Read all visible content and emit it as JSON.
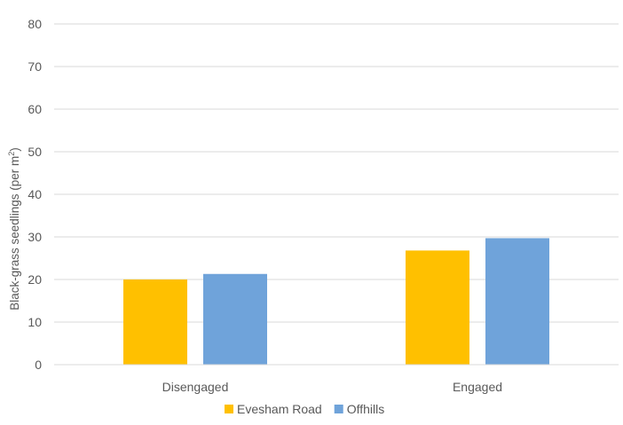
{
  "chart_data": {
    "type": "bar",
    "categories": [
      "Disengaged",
      "Engaged"
    ],
    "series": [
      {
        "name": "Evesham Road",
        "values": [
          20,
          26.8
        ],
        "color": "#FFC000"
      },
      {
        "name": "Offhills",
        "values": [
          21.3,
          29.7
        ],
        "color": "#6FA3DA"
      }
    ],
    "ylabel_main": "Black-grass seedlings (per m",
    "ylabel_sup": "2",
    "ylabel_close": ")",
    "ylim": [
      0,
      80
    ],
    "yticks": [
      0,
      10,
      20,
      30,
      40,
      50,
      60,
      70,
      80
    ],
    "grid": true,
    "legend_position": "bottom",
    "colors": {
      "gridline": "#D9D9D9",
      "axis": "#D9D9D9",
      "text": "#595959"
    }
  }
}
